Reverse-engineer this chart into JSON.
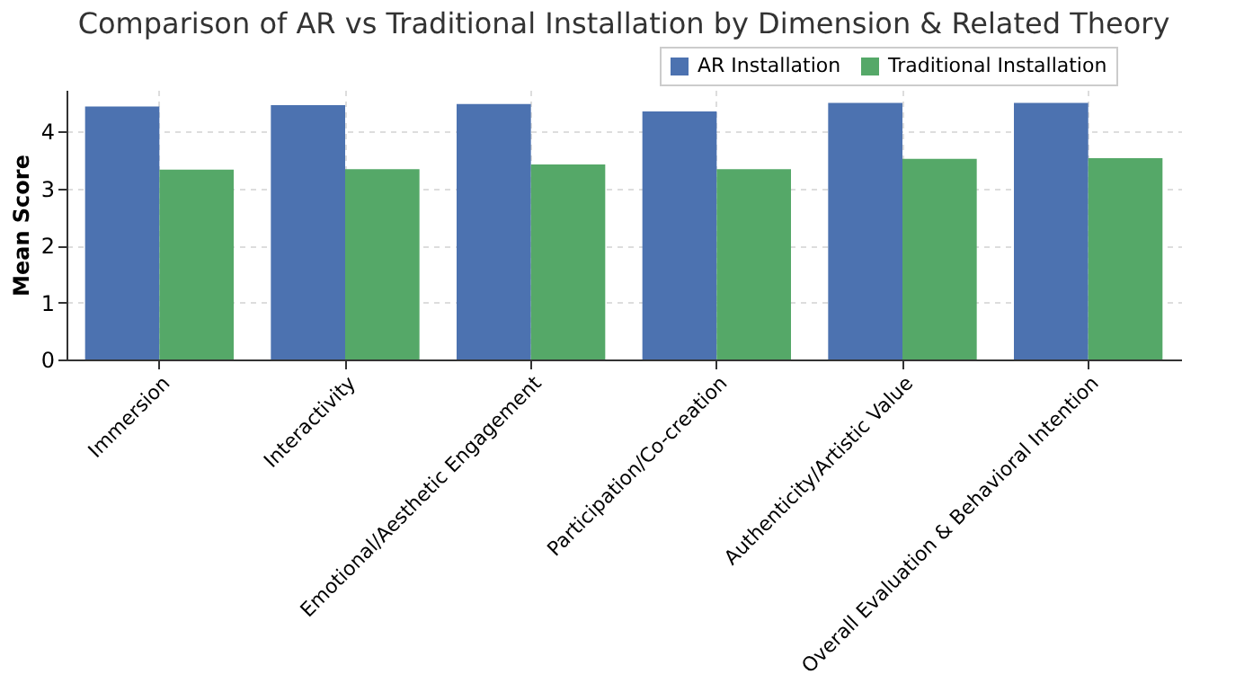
{
  "chart_data": {
    "type": "bar",
    "title": "Comparison of AR vs Traditional Installation by Dimension & Related Theory",
    "ylabel": "Mean Score",
    "categories": [
      "Immersion",
      "Interactivity",
      "Emotional/Aesthetic Engagement",
      "Participation/Co-creation",
      "Authenticity/Artistic Value",
      "Overall Evaluation & Behavioral Intention"
    ],
    "series": [
      {
        "name": "AR Installation",
        "color": "#4c72b0",
        "values": [
          4.44,
          4.46,
          4.48,
          4.35,
          4.5,
          4.5
        ]
      },
      {
        "name": "Traditional Installation",
        "color": "#55a868",
        "values": [
          3.33,
          3.34,
          3.42,
          3.34,
          3.52,
          3.53
        ]
      }
    ],
    "ylim": [
      0,
      4.73
    ],
    "yticks": [
      0,
      1,
      2,
      3,
      4
    ],
    "grid": true,
    "legend": "top right"
  }
}
